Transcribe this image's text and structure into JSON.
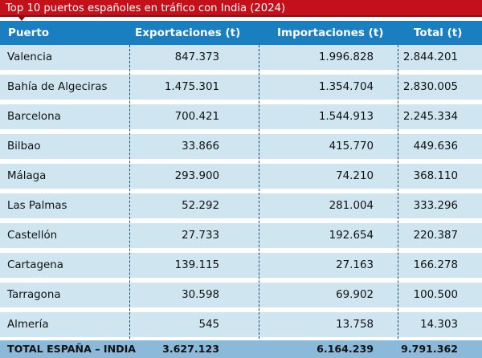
{
  "title": "Top 10 puertos españoles en tráfico con India (2024)",
  "columns": [
    "Puerto",
    "Exportaciones (t)",
    "Importaciones (t)",
    "Total (t)"
  ],
  "rows": [
    {
      "puerto": "Valencia",
      "exportaciones": "847.373",
      "importaciones": "1.996.828",
      "total": "2.844.201"
    },
    {
      "puerto": "Bahía de Algeciras",
      "exportaciones": "1.475.301",
      "importaciones": "1.354.704",
      "total": "2.830.005"
    },
    {
      "puerto": "Barcelona",
      "exportaciones": "700.421",
      "importaciones": "1.544.913",
      "total": "2.245.334"
    },
    {
      "puerto": "Bilbao",
      "exportaciones": "33.866",
      "importaciones": "415.770",
      "total": "449.636"
    },
    {
      "puerto": "Málaga",
      "exportaciones": "293.900",
      "importaciones": "74.210",
      "total": "368.110"
    },
    {
      "puerto": "Las Palmas",
      "exportaciones": "52.292",
      "importaciones": "281.004",
      "total": "333.296"
    },
    {
      "puerto": "Castellón",
      "exportaciones": "27.733",
      "importaciones": "192.654",
      "total": "220.387"
    },
    {
      "puerto": "Cartagena",
      "exportaciones": "139.115",
      "importaciones": "27.163",
      "total": "166.278"
    },
    {
      "puerto": "Tarragona",
      "exportaciones": "30.598",
      "importaciones": "69.902",
      "total": "100.500"
    },
    {
      "puerto": "Almería",
      "exportaciones": "545",
      "importaciones": "13.758",
      "total": "14.303"
    }
  ],
  "total_row": {
    "label": "TOTAL ESPAÑA – INDIA",
    "exportaciones": "3.627.123",
    "importaciones": "6.164.239",
    "total": "9.791.362"
  },
  "colors": {
    "title_bg": "#c4101a",
    "header_bg": "#1a7fc0",
    "row_bg": "#cfe6f1",
    "total_bg": "#8ab9da"
  }
}
